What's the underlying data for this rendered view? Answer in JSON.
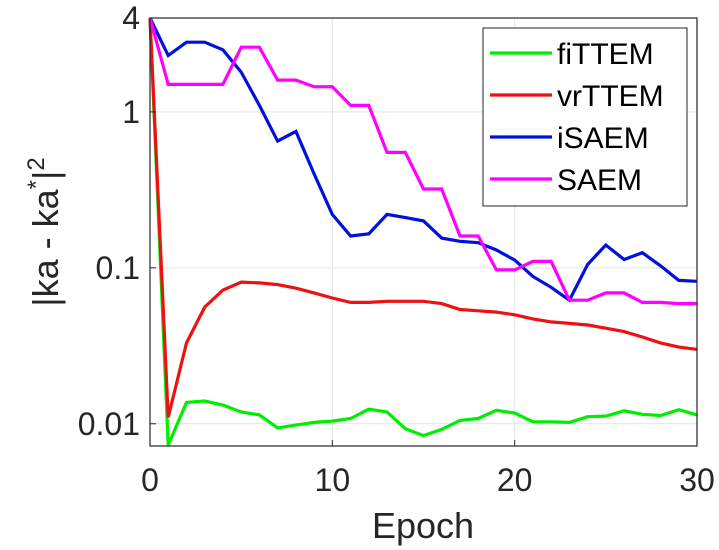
{
  "chart_data": {
    "type": "line",
    "xlabel": "Epoch",
    "ylabel": {
      "base": "|ka - ka",
      "sup1": "*",
      "close": "|",
      "sup2": "2"
    },
    "xlim": [
      0,
      30
    ],
    "ylim": [
      0.0072,
      4
    ],
    "yscale": "log",
    "xticks": [
      0,
      10,
      20,
      30
    ],
    "xtick_labels": [
      "0",
      "10",
      "20",
      "30"
    ],
    "yticks": [
      0.01,
      0.1,
      1,
      4
    ],
    "ytick_labels": [
      "0.01",
      "0.1",
      "1",
      "4"
    ],
    "grid": true,
    "legend_position": "top-right",
    "x": [
      0,
      1,
      2,
      3,
      4,
      5,
      6,
      7,
      8,
      9,
      10,
      11,
      12,
      13,
      14,
      15,
      16,
      17,
      18,
      19,
      20,
      21,
      22,
      23,
      24,
      25,
      26,
      27,
      28,
      29,
      30
    ],
    "series": [
      {
        "name": "fiTTEM",
        "color": "#00ee00",
        "values": [
          4,
          0.0073,
          0.0137,
          0.014,
          0.0132,
          0.0119,
          0.0114,
          0.0094,
          0.0098,
          0.0102,
          0.0104,
          0.0108,
          0.0124,
          0.0119,
          0.0093,
          0.0084,
          0.0092,
          0.0105,
          0.0108,
          0.0122,
          0.0117,
          0.0103,
          0.0103,
          0.0102,
          0.0111,
          0.0112,
          0.0121,
          0.0115,
          0.0113,
          0.0123,
          0.0114
        ]
      },
      {
        "name": "vrTTEM",
        "color": "#ee1111",
        "values": [
          4,
          0.011,
          0.033,
          0.056,
          0.072,
          0.081,
          0.08,
          0.078,
          0.074,
          0.069,
          0.064,
          0.06,
          0.06,
          0.061,
          0.061,
          0.061,
          0.059,
          0.054,
          0.053,
          0.052,
          0.05,
          0.047,
          0.045,
          0.044,
          0.043,
          0.041,
          0.039,
          0.036,
          0.033,
          0.031,
          0.03
        ]
      },
      {
        "name": "iSAEM",
        "color": "#0010dd",
        "values": [
          4,
          2.3,
          2.8,
          2.8,
          2.5,
          1.8,
          1.1,
          0.65,
          0.75,
          0.4,
          0.22,
          0.16,
          0.165,
          0.22,
          0.21,
          0.2,
          0.155,
          0.148,
          0.145,
          0.13,
          0.112,
          0.088,
          0.075,
          0.062,
          0.105,
          0.14,
          0.113,
          0.125,
          0.103,
          0.083,
          0.082
        ]
      },
      {
        "name": "SAEM",
        "color": "#ff00ff",
        "values": [
          4,
          1.5,
          1.5,
          1.5,
          1.5,
          2.6,
          2.6,
          1.6,
          1.6,
          1.45,
          1.45,
          1.1,
          1.1,
          0.55,
          0.55,
          0.32,
          0.32,
          0.16,
          0.16,
          0.097,
          0.097,
          0.11,
          0.11,
          0.062,
          0.062,
          0.069,
          0.069,
          0.06,
          0.06,
          0.059,
          0.059
        ]
      }
    ]
  }
}
